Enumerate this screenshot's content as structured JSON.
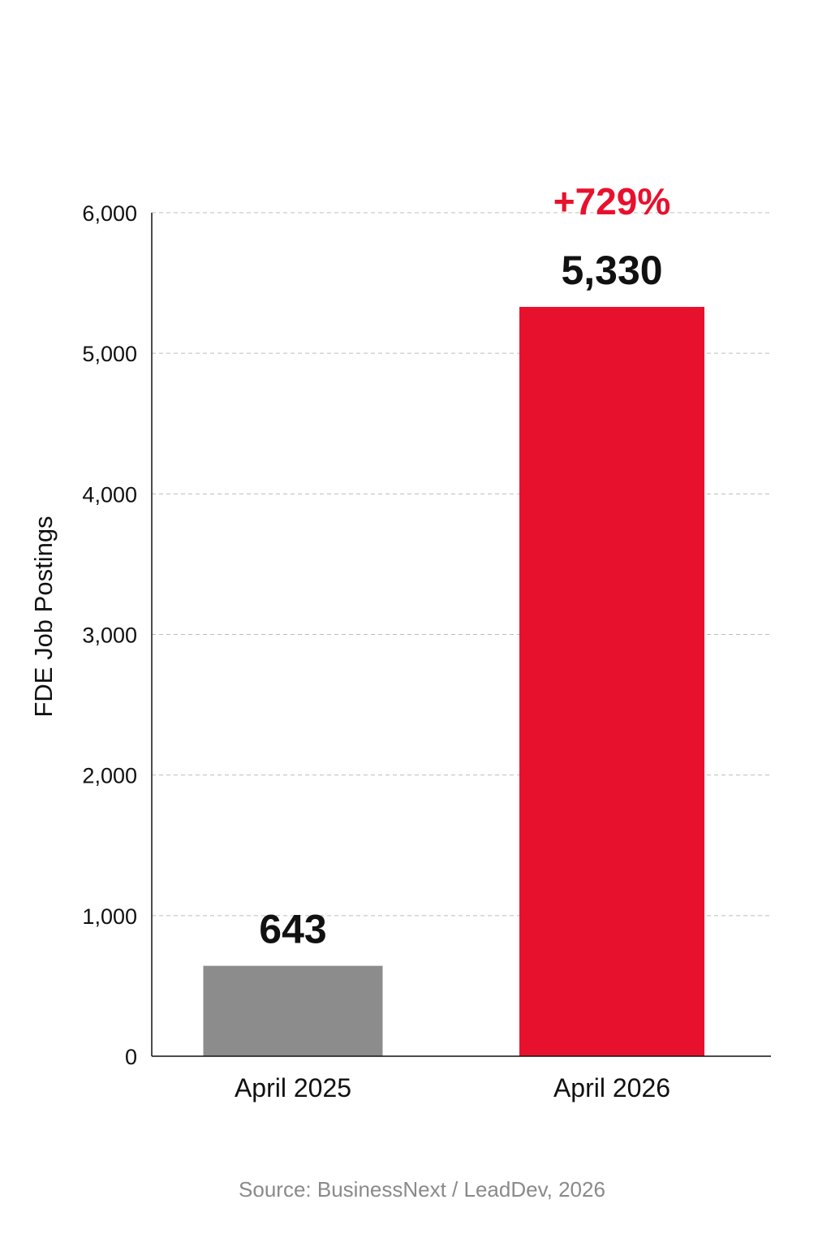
{
  "chart_data": {
    "type": "bar",
    "categories": [
      "April 2025",
      "April 2026"
    ],
    "values": [
      643,
      5330
    ],
    "value_labels": [
      "643",
      "5,330"
    ],
    "bar_colors": [
      "#8c8c8c",
      "#e8112d"
    ],
    "ylabel": "FDE Job Postings",
    "ylim": [
      0,
      6000
    ],
    "yticks": [
      0,
      1000,
      2000,
      3000,
      4000,
      5000,
      6000
    ],
    "ytick_labels": [
      "0",
      "1,000",
      "2,000",
      "3,000",
      "4,000",
      "5,000",
      "6,000"
    ],
    "grid": true,
    "annotation": {
      "text": "+729%",
      "category": "April 2026",
      "color": "#e8112d"
    },
    "source": "Source: BusinessNext / LeadDev, 2026"
  }
}
